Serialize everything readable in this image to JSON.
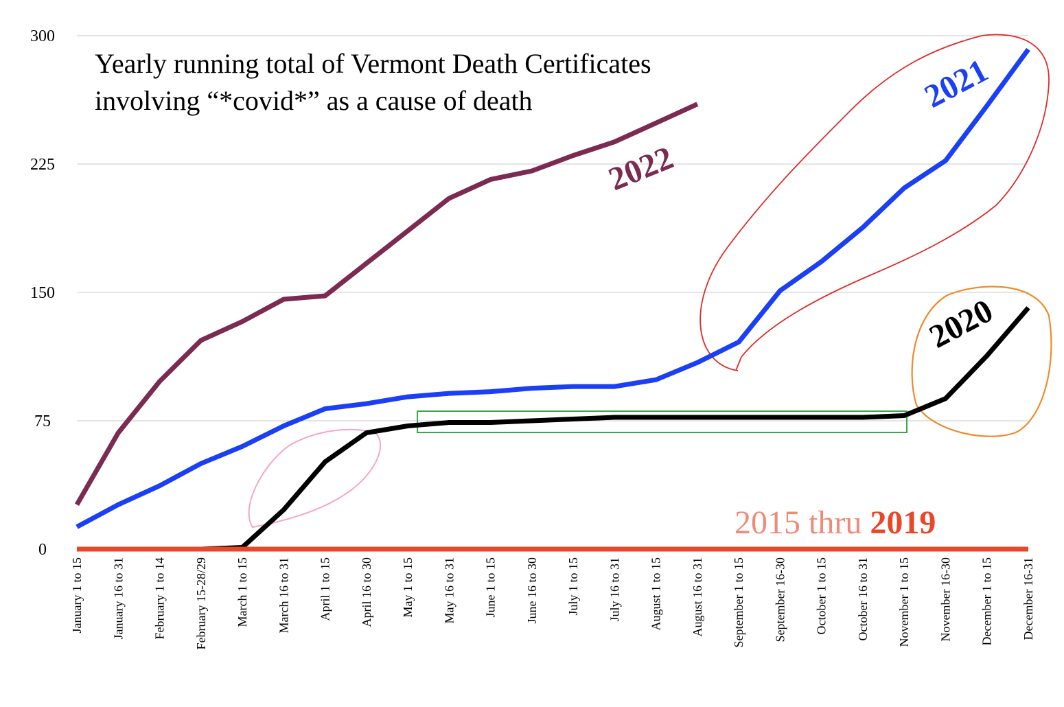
{
  "chart_data": {
    "type": "line",
    "title": "Yearly running total of Vermont Death Certificates involving “*covid*” as a cause of death",
    "title_lines": [
      "Yearly running total of Vermont Death Certificates",
      "involving “*covid*” as a cause of death"
    ],
    "xlabel": "",
    "ylabel": "",
    "ylim": [
      0,
      300
    ],
    "y_ticks": [
      "0",
      "75",
      "150",
      "225",
      "300"
    ],
    "grid": true,
    "categories": [
      "January 1 to 15",
      "January 16 to 31",
      "February 1 to 14",
      "February 15-28/29",
      "March 1 to 15",
      "March 16 to 31",
      "April 1 to 15",
      "April 16 to 30",
      "May 1 to 15",
      "May 16 to 31",
      "June 1 to 15",
      "June 16 to 30",
      "July 1 to 15",
      "July 16 to 31",
      "August 1 to 15",
      "August 16 to 31",
      "September 1 to 15",
      "September 16-30",
      "October 1 to 15",
      "October 16 to 31",
      "November 1 to 15",
      "November 16-30",
      "December 1 to 15",
      "December 16-31"
    ],
    "series": [
      {
        "name": "2022",
        "color": "#7b2a52",
        "values": [
          26,
          68,
          98,
          122,
          133,
          146,
          148,
          167,
          186,
          205,
          216,
          221,
          230,
          238,
          249,
          260,
          null,
          null,
          null,
          null,
          null,
          null,
          null,
          null
        ]
      },
      {
        "name": "2021",
        "color": "#1a3ff5",
        "values": [
          13,
          26,
          37,
          50,
          60,
          72,
          82,
          85,
          89,
          91,
          92,
          94,
          95,
          95,
          99,
          109,
          121,
          151,
          168,
          188,
          211,
          227,
          259,
          292
        ]
      },
      {
        "name": "2020",
        "color": "#000000",
        "values": [
          0,
          0,
          0,
          0,
          1,
          23,
          51,
          68,
          72,
          74,
          74,
          75,
          76,
          77,
          77,
          77,
          77,
          77,
          77,
          77,
          78,
          88,
          113,
          141
        ]
      }
    ],
    "baseline": {
      "label_prefix": "2015 thru ",
      "label_strong": "2019",
      "value": 0,
      "color": "#e8472a",
      "label_color_light": "#f08a78"
    }
  }
}
